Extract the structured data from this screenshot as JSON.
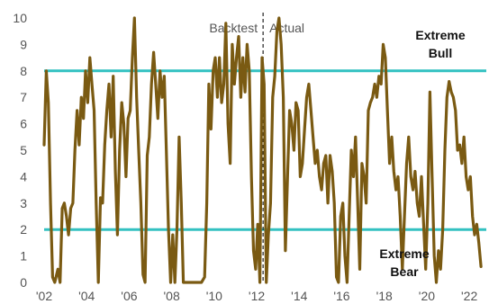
{
  "chart_data": {
    "type": "line",
    "title": "",
    "xlabel": "",
    "ylabel": "",
    "xlim": [
      2002.0,
      2022.8
    ],
    "ylim": [
      0,
      10
    ],
    "grid": false,
    "legend": "none",
    "x_tick_labels": [
      "'02",
      "'04",
      "'06",
      "'08",
      "'10",
      "'12",
      "'14",
      "'16",
      "'18",
      "'20",
      "'22"
    ],
    "x_tick_values": [
      2002,
      2004,
      2006,
      2008,
      2010,
      2012,
      2014,
      2016,
      2018,
      2020,
      2022
    ],
    "y_tick_labels": [
      "0",
      "1",
      "2",
      "3",
      "4",
      "5",
      "6",
      "7",
      "8",
      "9",
      "10"
    ],
    "y_tick_values": [
      0,
      1,
      2,
      3,
      4,
      5,
      6,
      7,
      8,
      9,
      10
    ],
    "reference_lines": [
      {
        "y": 8,
        "label_lines": [
          "Extreme",
          "Bull"
        ],
        "label_side": "above",
        "color": "#33c1c1"
      },
      {
        "y": 2,
        "label_lines": [
          "Extreme",
          "Bear"
        ],
        "label_side": "below",
        "color": "#33c1c1"
      }
    ],
    "divider": {
      "x": 2012.3,
      "left_label": "Backtest",
      "right_label": "Actual"
    },
    "series": [
      {
        "color": "#7a5a12",
        "points": [
          [
            2002.0,
            5.2
          ],
          [
            2002.1,
            8.0
          ],
          [
            2002.2,
            6.8
          ],
          [
            2002.3,
            3.0
          ],
          [
            2002.4,
            0.2
          ],
          [
            2002.5,
            0.0
          ],
          [
            2002.65,
            0.5
          ],
          [
            2002.75,
            0.0
          ],
          [
            2002.85,
            2.8
          ],
          [
            2002.95,
            3.0
          ],
          [
            2003.05,
            2.5
          ],
          [
            2003.15,
            1.8
          ],
          [
            2003.25,
            2.8
          ],
          [
            2003.35,
            3.0
          ],
          [
            2003.45,
            5.0
          ],
          [
            2003.55,
            6.5
          ],
          [
            2003.65,
            5.2
          ],
          [
            2003.75,
            7.0
          ],
          [
            2003.85,
            6.2
          ],
          [
            2003.95,
            8.0
          ],
          [
            2004.05,
            6.8
          ],
          [
            2004.15,
            8.5
          ],
          [
            2004.25,
            7.5
          ],
          [
            2004.35,
            6.5
          ],
          [
            2004.45,
            3.0
          ],
          [
            2004.55,
            0.0
          ],
          [
            2004.65,
            3.2
          ],
          [
            2004.75,
            3.0
          ],
          [
            2004.85,
            5.2
          ],
          [
            2004.95,
            6.5
          ],
          [
            2005.05,
            7.5
          ],
          [
            2005.15,
            5.5
          ],
          [
            2005.25,
            7.8
          ],
          [
            2005.35,
            4.2
          ],
          [
            2005.45,
            1.8
          ],
          [
            2005.55,
            5.0
          ],
          [
            2005.65,
            6.8
          ],
          [
            2005.75,
            6.0
          ],
          [
            2005.85,
            4.0
          ],
          [
            2005.95,
            6.2
          ],
          [
            2006.05,
            6.5
          ],
          [
            2006.15,
            8.5
          ],
          [
            2006.25,
            10.0
          ],
          [
            2006.35,
            7.0
          ],
          [
            2006.45,
            5.0
          ],
          [
            2006.55,
            3.0
          ],
          [
            2006.65,
            0.3
          ],
          [
            2006.75,
            0.0
          ],
          [
            2006.85,
            4.8
          ],
          [
            2006.95,
            5.5
          ],
          [
            2007.05,
            7.5
          ],
          [
            2007.15,
            8.7
          ],
          [
            2007.25,
            7.5
          ],
          [
            2007.35,
            6.2
          ],
          [
            2007.45,
            8.0
          ],
          [
            2007.55,
            7.0
          ],
          [
            2007.65,
            7.8
          ],
          [
            2007.75,
            5.0
          ],
          [
            2007.85,
            2.0
          ],
          [
            2007.95,
            0.0
          ],
          [
            2008.05,
            1.8
          ],
          [
            2008.15,
            0.0
          ],
          [
            2008.25,
            2.0
          ],
          [
            2008.35,
            5.5
          ],
          [
            2008.45,
            3.0
          ],
          [
            2008.55,
            0.0
          ],
          [
            2008.8,
            0.0
          ],
          [
            2009.1,
            0.0
          ],
          [
            2009.4,
            0.0
          ],
          [
            2009.55,
            0.2
          ],
          [
            2009.65,
            3.0
          ],
          [
            2009.75,
            7.5
          ],
          [
            2009.85,
            5.8
          ],
          [
            2009.95,
            8.0
          ],
          [
            2010.05,
            8.5
          ],
          [
            2010.15,
            7.0
          ],
          [
            2010.25,
            8.5
          ],
          [
            2010.35,
            6.8
          ],
          [
            2010.45,
            7.5
          ],
          [
            2010.55,
            9.8
          ],
          [
            2010.65,
            6.0
          ],
          [
            2010.75,
            4.5
          ],
          [
            2010.85,
            9.0
          ],
          [
            2010.95,
            7.5
          ],
          [
            2011.05,
            8.5
          ],
          [
            2011.15,
            9.3
          ],
          [
            2011.25,
            7.0
          ],
          [
            2011.35,
            8.5
          ],
          [
            2011.45,
            7.2
          ],
          [
            2011.55,
            9.0
          ],
          [
            2011.65,
            8.0
          ],
          [
            2011.75,
            4.0
          ],
          [
            2011.85,
            1.2
          ],
          [
            2011.95,
            0.5
          ],
          [
            2012.05,
            2.2
          ],
          [
            2012.15,
            0.0
          ],
          [
            2012.25,
            8.5
          ],
          [
            2012.35,
            7.5
          ],
          [
            2012.45,
            0.0
          ],
          [
            2012.55,
            1.8
          ],
          [
            2012.65,
            3.0
          ],
          [
            2012.75,
            7.0
          ],
          [
            2012.85,
            7.8
          ],
          [
            2012.95,
            9.5
          ],
          [
            2013.05,
            10.0
          ],
          [
            2013.15,
            9.0
          ],
          [
            2013.25,
            7.0
          ],
          [
            2013.35,
            1.2
          ],
          [
            2013.45,
            4.0
          ],
          [
            2013.55,
            6.5
          ],
          [
            2013.65,
            6.0
          ],
          [
            2013.75,
            5.0
          ],
          [
            2013.85,
            6.8
          ],
          [
            2013.95,
            6.5
          ],
          [
            2014.05,
            4.0
          ],
          [
            2014.15,
            4.5
          ],
          [
            2014.25,
            5.8
          ],
          [
            2014.35,
            7.0
          ],
          [
            2014.45,
            7.5
          ],
          [
            2014.55,
            6.5
          ],
          [
            2014.65,
            5.5
          ],
          [
            2014.75,
            4.5
          ],
          [
            2014.85,
            5.0
          ],
          [
            2014.95,
            4.0
          ],
          [
            2015.05,
            3.5
          ],
          [
            2015.15,
            4.5
          ],
          [
            2015.25,
            4.8
          ],
          [
            2015.35,
            3.0
          ],
          [
            2015.45,
            4.8
          ],
          [
            2015.55,
            4.2
          ],
          [
            2015.65,
            3.0
          ],
          [
            2015.75,
            0.2
          ],
          [
            2015.85,
            0.0
          ],
          [
            2015.95,
            2.5
          ],
          [
            2016.05,
            3.0
          ],
          [
            2016.15,
            1.0
          ],
          [
            2016.25,
            0.0
          ],
          [
            2016.35,
            2.5
          ],
          [
            2016.45,
            5.0
          ],
          [
            2016.55,
            4.0
          ],
          [
            2016.65,
            5.5
          ],
          [
            2016.75,
            3.0
          ],
          [
            2016.85,
            0.5
          ],
          [
            2016.95,
            4.5
          ],
          [
            2017.05,
            4.0
          ],
          [
            2017.15,
            3.0
          ],
          [
            2017.25,
            6.5
          ],
          [
            2017.35,
            6.8
          ],
          [
            2017.45,
            7.0
          ],
          [
            2017.55,
            7.5
          ],
          [
            2017.65,
            7.0
          ],
          [
            2017.75,
            7.8
          ],
          [
            2017.85,
            7.5
          ],
          [
            2017.95,
            9.0
          ],
          [
            2018.05,
            8.5
          ],
          [
            2018.15,
            6.5
          ],
          [
            2018.25,
            4.5
          ],
          [
            2018.35,
            5.5
          ],
          [
            2018.45,
            4.2
          ],
          [
            2018.55,
            3.5
          ],
          [
            2018.65,
            4.0
          ],
          [
            2018.75,
            2.5
          ],
          [
            2018.85,
            0.5
          ],
          [
            2018.95,
            2.5
          ],
          [
            2019.05,
            4.5
          ],
          [
            2019.15,
            5.5
          ],
          [
            2019.25,
            4.0
          ],
          [
            2019.35,
            3.5
          ],
          [
            2019.45,
            4.2
          ],
          [
            2019.55,
            3.0
          ],
          [
            2019.65,
            2.5
          ],
          [
            2019.75,
            4.0
          ],
          [
            2019.85,
            2.2
          ],
          [
            2019.95,
            0.5
          ],
          [
            2020.05,
            3.0
          ],
          [
            2020.15,
            7.2
          ],
          [
            2020.25,
            4.0
          ],
          [
            2020.35,
            1.0
          ],
          [
            2020.45,
            0.0
          ],
          [
            2020.55,
            1.2
          ],
          [
            2020.65,
            0.5
          ],
          [
            2020.75,
            2.0
          ],
          [
            2020.85,
            5.0
          ],
          [
            2020.95,
            7.0
          ],
          [
            2021.05,
            7.6
          ],
          [
            2021.15,
            7.2
          ],
          [
            2021.25,
            7.0
          ],
          [
            2021.35,
            6.5
          ],
          [
            2021.45,
            5.0
          ],
          [
            2021.55,
            5.2
          ],
          [
            2021.65,
            4.5
          ],
          [
            2021.75,
            5.5
          ],
          [
            2021.85,
            4.0
          ],
          [
            2021.95,
            3.5
          ],
          [
            2022.05,
            4.0
          ],
          [
            2022.15,
            2.5
          ],
          [
            2022.25,
            1.8
          ],
          [
            2022.35,
            2.2
          ],
          [
            2022.45,
            1.5
          ],
          [
            2022.55,
            0.6
          ]
        ]
      }
    ]
  }
}
